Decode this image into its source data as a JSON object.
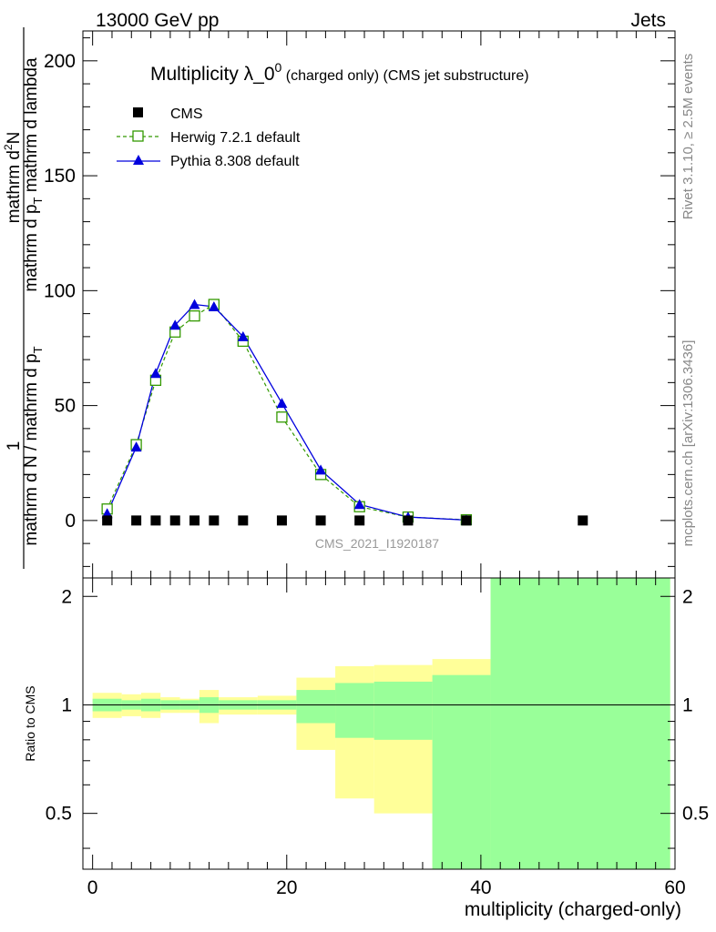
{
  "header": {
    "left": "13000 GeV pp",
    "right": "Jets"
  },
  "side_labels": {
    "rivet": "Rivet 3.1.10, ≥ 2.5M events",
    "mcplots": "mcplots.cern.ch [arXiv:1306.3436]"
  },
  "colors": {
    "herwig": "#339900",
    "pythia": "#0000dd",
    "band_inner": "#99ff99",
    "band_outer": "#ffff99",
    "cms": "#000000",
    "watermark": "#999999"
  },
  "chart_data": [
    {
      "type": "scatter",
      "title_main": "Multiplicity λ_0",
      "title_sup": "0",
      "title_rest": " (charged only) (CMS jet substructure)",
      "watermark": "CMS_2021_I1920187",
      "ylabel": {
        "numerator_one": "1",
        "denominator_one": "mathrm d N / mathrm d p",
        "denominator_one_sub": "T",
        "numerator_two": "mathrm d",
        "numerator_two_sup": "2",
        "numerator_two_rest": "N",
        "denominator_two": "mathrm d p",
        "denominator_two_sub": "T",
        "denominator_two_rest": " mathrm d lambda"
      },
      "xlim": [
        -1,
        60
      ],
      "ylim": [
        -25,
        213
      ],
      "yticks": [
        0,
        50,
        100,
        150,
        200
      ],
      "yticklabels": [
        "0",
        "50",
        "100",
        "150",
        "200"
      ],
      "legend": [
        {
          "name": "CMS",
          "marker": "filled-square"
        },
        {
          "name": "Herwig 7.2.1 default",
          "marker": "open-square-dashed"
        },
        {
          "name": "Pythia 8.308 default",
          "marker": "filled-triangle-solid"
        }
      ],
      "series": [
        {
          "name": "CMS",
          "x": [
            1.5,
            4.5,
            6.5,
            8.5,
            10.5,
            12.5,
            15.5,
            19.5,
            23.5,
            27.5,
            32.5,
            38.5,
            50.5
          ],
          "y": [
            0,
            0,
            0,
            0,
            0,
            0,
            0,
            0,
            0,
            0,
            0,
            0,
            0
          ]
        },
        {
          "name": "Herwig 7.2.1 default",
          "x": [
            1.5,
            4.5,
            6.5,
            8.5,
            10.5,
            12.5,
            15.5,
            19.5,
            23.5,
            27.5,
            32.5,
            38.5
          ],
          "y": [
            5,
            33,
            61,
            82,
            89,
            94,
            78,
            45,
            20,
            6,
            1.5,
            0.3
          ]
        },
        {
          "name": "Pythia 8.308 default",
          "x": [
            1.5,
            4.5,
            6.5,
            8.5,
            10.5,
            12.5,
            15.5,
            19.5,
            23.5,
            27.5,
            32.5,
            38.5
          ],
          "y": [
            3,
            32,
            64,
            85,
            94,
            93,
            80,
            51,
            22,
            7,
            1.5,
            0.2
          ]
        }
      ]
    },
    {
      "type": "area",
      "ylabel": "Ratio to CMS",
      "xlabel": "multiplicity (charged-only)",
      "xlim": [
        -1,
        60
      ],
      "ylim": [
        0.35,
        2.25
      ],
      "xticks": [
        0,
        20,
        40,
        60
      ],
      "xticklabels": [
        "0",
        "20",
        "40",
        "60"
      ],
      "yticks": [
        0.5,
        1,
        2
      ],
      "yticklabels": [
        "0.5",
        "1",
        "2"
      ],
      "reference_line": 1,
      "bins": [
        {
          "lo": 0,
          "hi": 3,
          "inner": [
            0.96,
            1.04
          ],
          "outer": [
            0.92,
            1.08
          ]
        },
        {
          "lo": 3,
          "hi": 5,
          "inner": [
            0.97,
            1.03
          ],
          "outer": [
            0.93,
            1.07
          ]
        },
        {
          "lo": 5,
          "hi": 7,
          "inner": [
            0.96,
            1.04
          ],
          "outer": [
            0.92,
            1.08
          ]
        },
        {
          "lo": 7,
          "hi": 9,
          "inner": [
            0.97,
            1.03
          ],
          "outer": [
            0.95,
            1.05
          ]
        },
        {
          "lo": 9,
          "hi": 11,
          "inner": [
            0.97,
            1.03
          ],
          "outer": [
            0.95,
            1.04
          ]
        },
        {
          "lo": 11,
          "hi": 13,
          "inner": [
            0.95,
            1.05
          ],
          "outer": [
            0.89,
            1.1
          ]
        },
        {
          "lo": 13,
          "hi": 17,
          "inner": [
            0.97,
            1.03
          ],
          "outer": [
            0.94,
            1.05
          ]
        },
        {
          "lo": 17,
          "hi": 21,
          "inner": [
            0.97,
            1.03
          ],
          "outer": [
            0.94,
            1.06
          ]
        },
        {
          "lo": 21,
          "hi": 25,
          "inner": [
            0.89,
            1.1
          ],
          "outer": [
            0.75,
            1.19
          ]
        },
        {
          "lo": 25,
          "hi": 29,
          "inner": [
            0.81,
            1.15
          ],
          "outer": [
            0.55,
            1.28
          ]
        },
        {
          "lo": 29,
          "hi": 35,
          "inner": [
            0.8,
            1.16
          ],
          "outer": [
            0.5,
            1.29
          ]
        },
        {
          "lo": 35,
          "hi": 41,
          "inner": [
            0.33,
            1.21
          ],
          "outer": [
            0.33,
            1.34
          ]
        },
        {
          "lo": 41,
          "hi": 59.5,
          "inner": [
            0.33,
            2.3
          ],
          "outer": [
            0.33,
            2.3
          ]
        }
      ]
    }
  ]
}
